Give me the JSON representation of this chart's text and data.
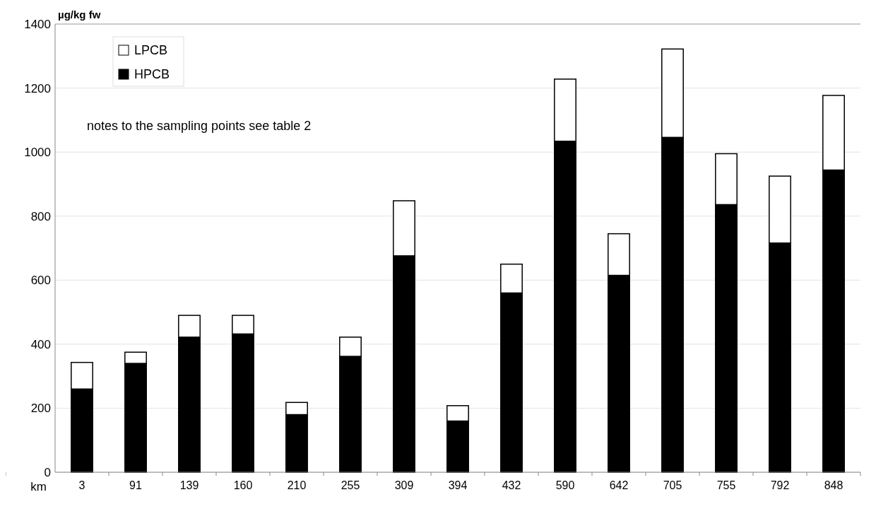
{
  "chart_data": {
    "type": "bar",
    "stacked": true,
    "ylabel": "µg/kg fw",
    "xlabel": "km",
    "categories": [
      "3",
      "91",
      "139",
      "160",
      "210",
      "255",
      "309",
      "394",
      "432",
      "590",
      "642",
      "705",
      "755",
      "792",
      "848"
    ],
    "series": [
      {
        "name": "HPCB",
        "color": "#000000",
        "values": [
          260,
          340,
          422,
          432,
          180,
          362,
          676,
          160,
          560,
          1034,
          615,
          1046,
          836,
          716,
          944
        ]
      },
      {
        "name": "LPCB",
        "color": "#ffffff",
        "values": [
          83,
          35,
          68,
          58,
          38,
          60,
          172,
          48,
          90,
          194,
          130,
          276,
          159,
          209,
          233
        ]
      }
    ],
    "ylim": [
      0,
      1400
    ],
    "yticks": [
      0,
      200,
      400,
      600,
      800,
      1000,
      1200,
      1400
    ],
    "grid": "y",
    "legend": "top left",
    "annotations": [
      "notes to the sampling points see table 2"
    ]
  }
}
